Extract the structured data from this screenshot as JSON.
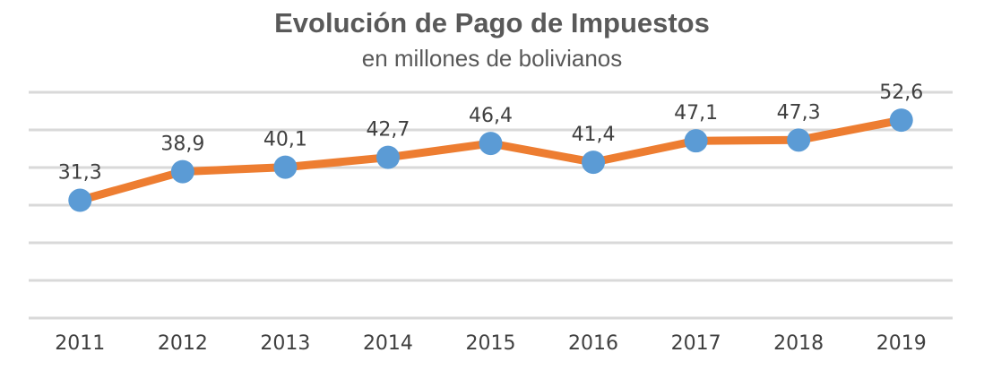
{
  "chart_data": {
    "type": "line",
    "title": "Evolución de Pago de Impuestos",
    "subtitle": "en millones de bolivianos",
    "categories": [
      "2011",
      "2012",
      "2013",
      "2014",
      "2015",
      "2016",
      "2017",
      "2018",
      "2019"
    ],
    "series": [
      {
        "values": [
          31.3,
          38.9,
          40.1,
          42.7,
          46.4,
          41.4,
          47.1,
          47.3,
          52.6
        ]
      }
    ],
    "data_labels": [
      "31,3",
      "38,9",
      "40,1",
      "42,7",
      "46,4",
      "41,4",
      "47,1",
      "47,3",
      "52,6"
    ],
    "ylim": [
      0,
      60
    ],
    "grid": true,
    "legend": "none",
    "colors": {
      "line": "#ed7d31",
      "marker": "#5b9bd5",
      "grid": "#d9d9d9",
      "text": "#595959"
    }
  }
}
